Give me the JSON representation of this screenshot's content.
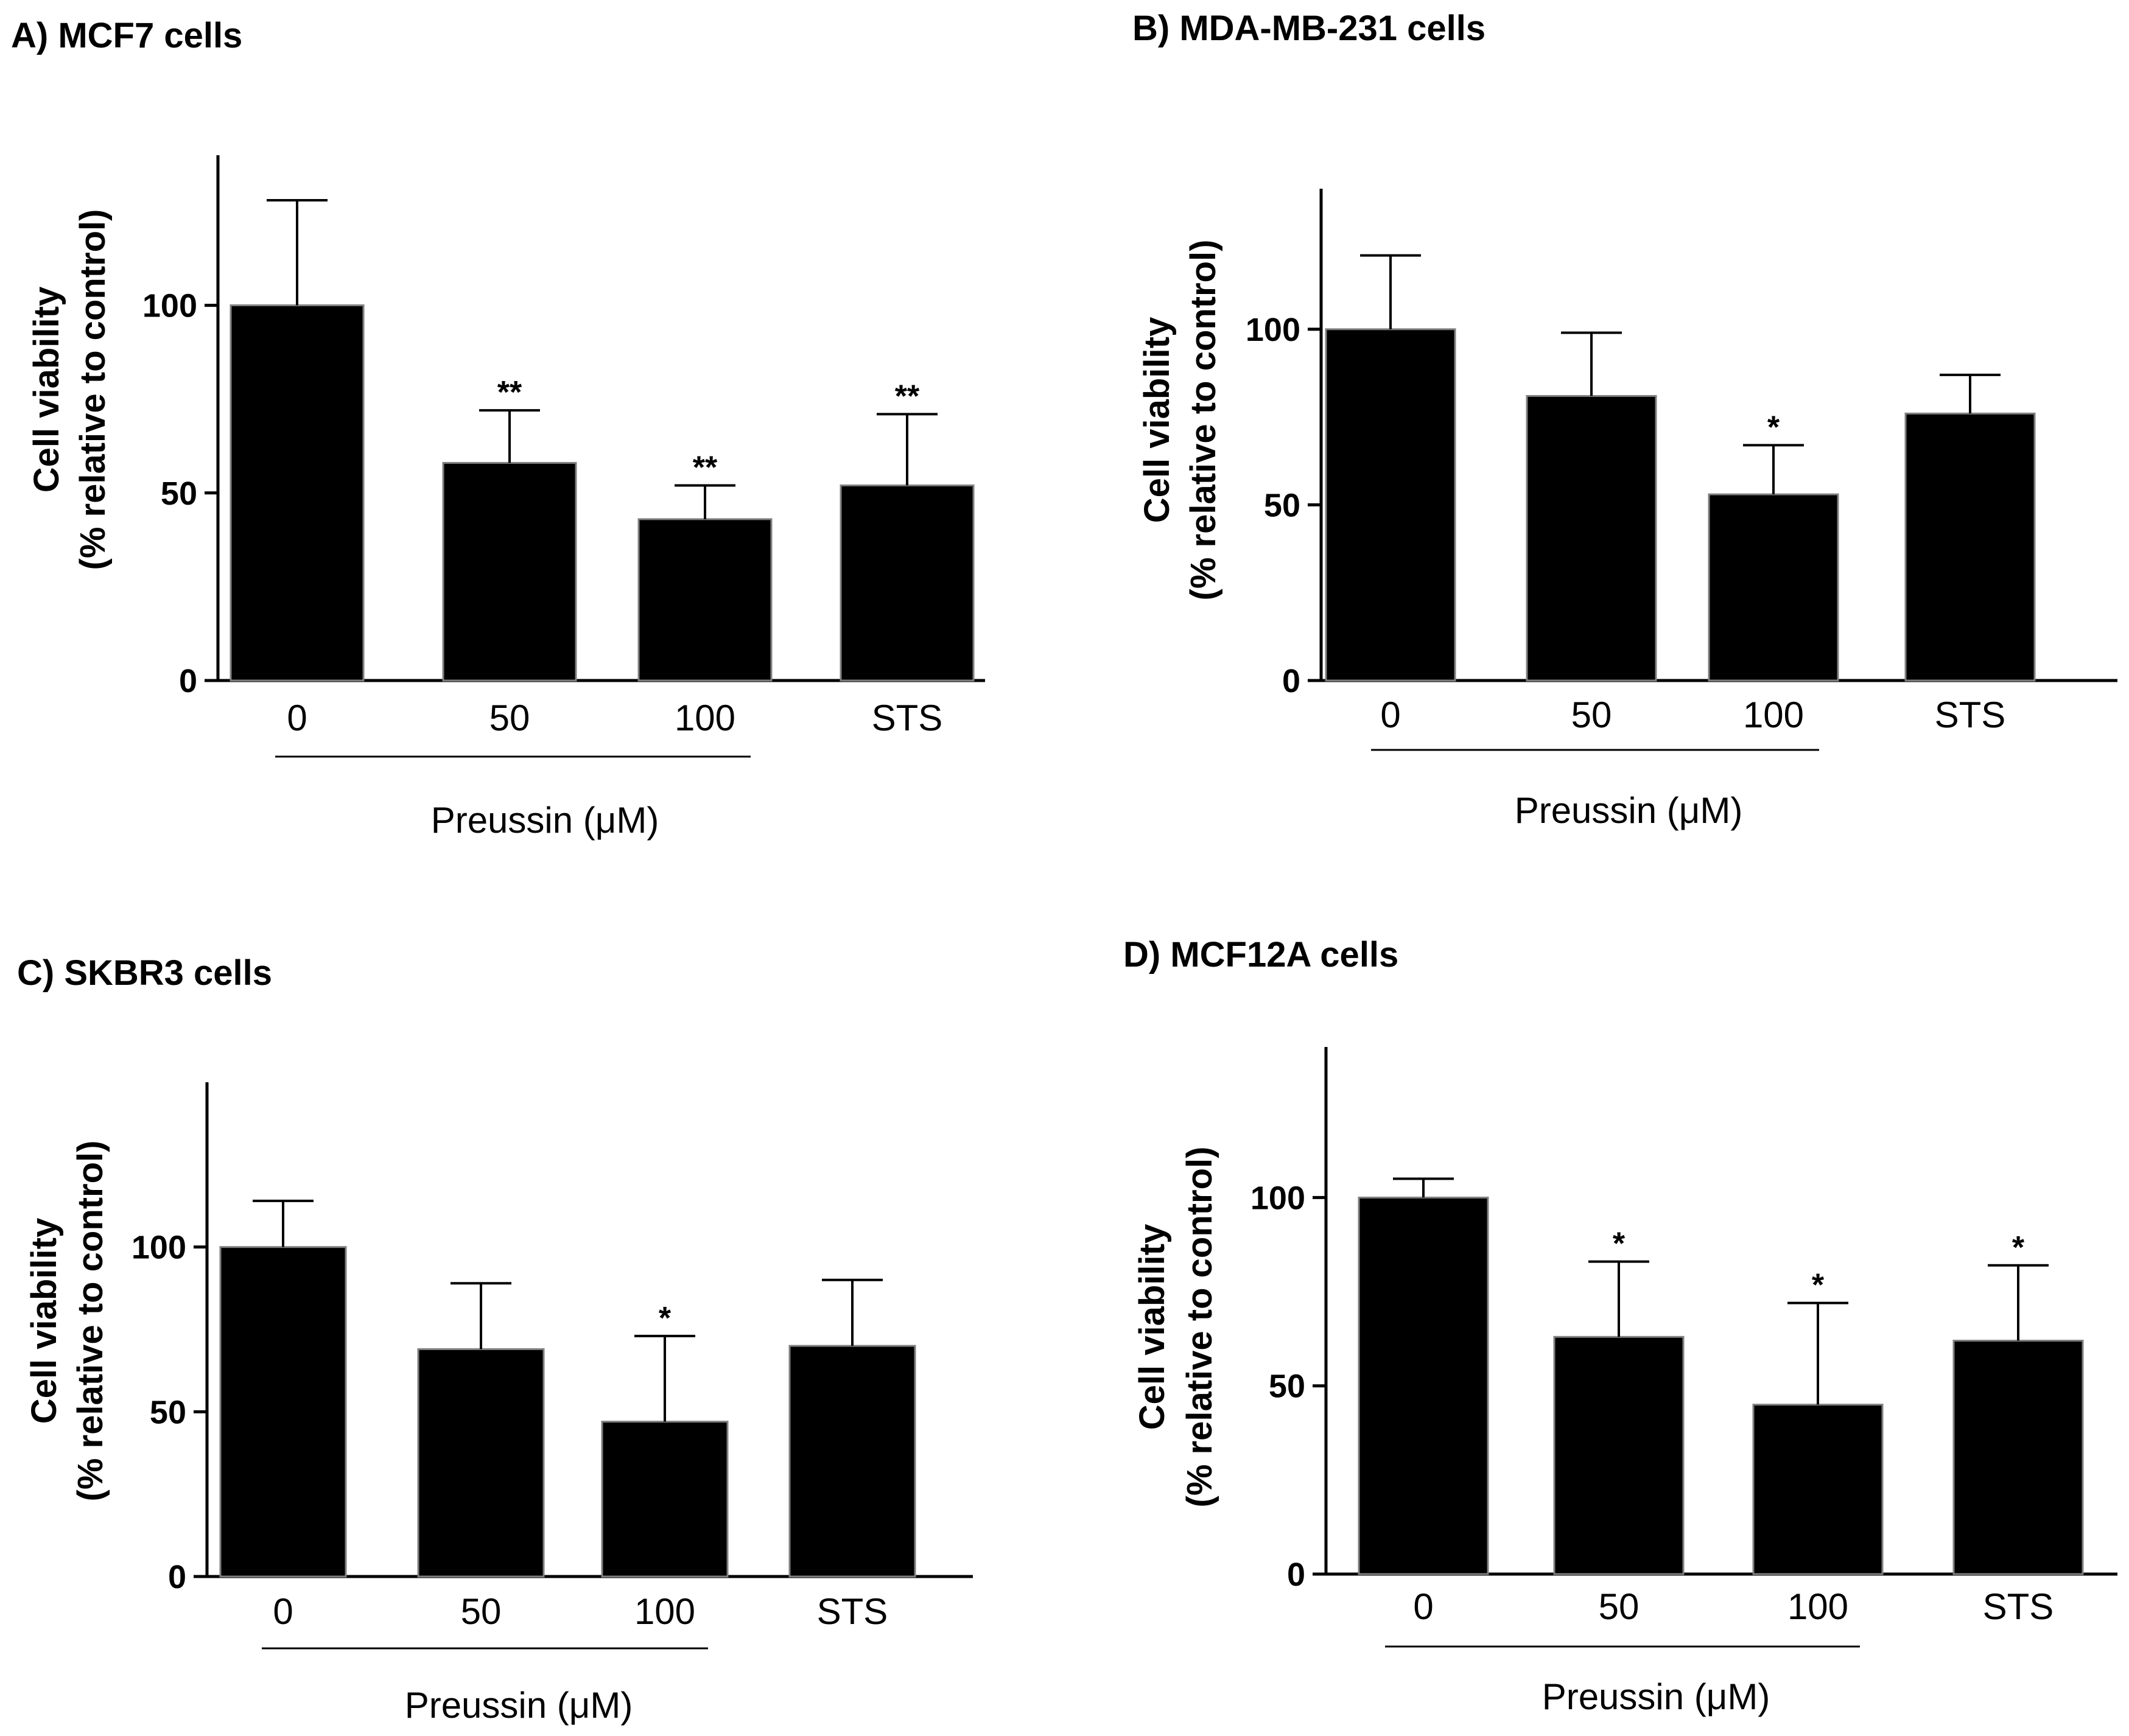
{
  "colors": {
    "bar": "#000000",
    "bar_edge": "#808080",
    "axis": "#000000"
  },
  "chart_data": [
    {
      "type": "bar",
      "title": "A) MCF7 cells",
      "categories": [
        "0",
        "50",
        "100",
        "STS"
      ],
      "values": [
        100,
        58,
        43,
        52
      ],
      "errors": [
        28,
        14,
        9,
        19
      ],
      "significance": [
        "",
        "**",
        "**",
        "**"
      ],
      "xlabel": "Preussin (μM)",
      "ylabel": [
        "Cell viability",
        "(% relative to control)"
      ],
      "ylim": [
        0,
        140
      ],
      "yticks": [
        0,
        50,
        100
      ],
      "bracket_span": [
        0,
        2
      ],
      "grid": false
    },
    {
      "type": "bar",
      "title": "B) MDA-MB-231 cells",
      "categories": [
        "0",
        "50",
        "100",
        "STS"
      ],
      "values": [
        100,
        81,
        53,
        76
      ],
      "errors": [
        21,
        18,
        14,
        11
      ],
      "significance": [
        "",
        "",
        "*",
        ""
      ],
      "xlabel": "Preussin (μM)",
      "ylabel": [
        "Cell viability",
        "(% relative to control)"
      ],
      "ylim": [
        0,
        140
      ],
      "yticks": [
        0,
        50,
        100
      ],
      "bracket_span": [
        0,
        2
      ],
      "grid": false
    },
    {
      "type": "bar",
      "title": "C) SKBR3 cells",
      "categories": [
        "0",
        "50",
        "100",
        "STS"
      ],
      "values": [
        100,
        69,
        47,
        70
      ],
      "errors": [
        14,
        20,
        26,
        20
      ],
      "significance": [
        "",
        "",
        "*",
        ""
      ],
      "xlabel": "Preussin (μM)",
      "ylabel": [
        "Cell viability",
        "(% relative to control)"
      ],
      "ylim": [
        0,
        150
      ],
      "yticks": [
        0,
        50,
        100
      ],
      "bracket_span": [
        0,
        2
      ],
      "grid": false
    },
    {
      "type": "bar",
      "title": "D) MCF12A cells",
      "categories": [
        "0",
        "50",
        "100",
        "STS"
      ],
      "values": [
        100,
        63,
        45,
        62
      ],
      "errors": [
        5,
        20,
        27,
        20
      ],
      "significance": [
        "",
        "*",
        "*",
        "*"
      ],
      "xlabel": "Preussin (μM)",
      "ylabel": [
        "Cell viability",
        "(% relative to control)"
      ],
      "ylim": [
        0,
        140
      ],
      "yticks": [
        0,
        50,
        100
      ],
      "bracket_span": [
        0,
        2
      ],
      "grid": false
    }
  ]
}
